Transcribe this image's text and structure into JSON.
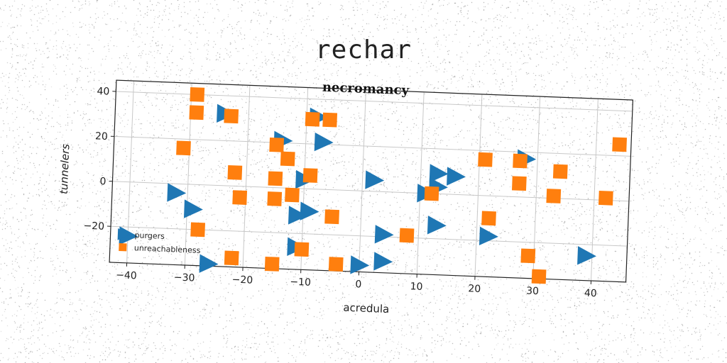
{
  "page_title": "rechar",
  "chart_data": {
    "type": "scatter",
    "title": "necromancy",
    "xlabel": "acredula",
    "ylabel": "tunnelers",
    "xlim": [
      -43,
      46
    ],
    "ylim": [
      -36,
      45
    ],
    "xticks": [
      -40,
      -30,
      -20,
      -10,
      0,
      10,
      20,
      30,
      40
    ],
    "yticks": [
      -20,
      0,
      20,
      40
    ],
    "grid": true,
    "legend_position": "lower-left",
    "series": [
      {
        "name": "purgers",
        "marker": "triangle-right",
        "color": "#1f77b4",
        "points": [
          [
            -24,
            32
          ],
          [
            -8,
            32
          ],
          [
            -14,
            21
          ],
          [
            -7,
            21
          ],
          [
            -32,
            -4
          ],
          [
            -29,
            -11
          ],
          [
            -10,
            4
          ],
          [
            -9,
            -10
          ],
          [
            -11,
            -12
          ],
          [
            -11,
            -26
          ],
          [
            2,
            5
          ],
          [
            4,
            -19
          ],
          [
            11,
            0
          ],
          [
            13,
            9
          ],
          [
            16,
            8
          ],
          [
            13,
            3
          ],
          [
            13,
            -14
          ],
          [
            22,
            -18
          ],
          [
            28,
            17
          ],
          [
            39,
            -25
          ],
          [
            -26,
            -35
          ],
          [
            0,
            -33
          ],
          [
            4,
            -31
          ],
          [
            -40,
            -24
          ]
        ]
      },
      {
        "name": "unreachableness",
        "marker": "square",
        "color": "#ff7f0e",
        "points": [
          [
            -29,
            40
          ],
          [
            -29,
            32
          ],
          [
            -23,
            31
          ],
          [
            -9,
            31
          ],
          [
            -6,
            31
          ],
          [
            -15,
            19
          ],
          [
            -13,
            13
          ],
          [
            -31,
            16
          ],
          [
            -22,
            6
          ],
          [
            -9,
            6
          ],
          [
            -15,
            4
          ],
          [
            -15,
            -5
          ],
          [
            -12,
            -3
          ],
          [
            -21,
            -5
          ],
          [
            -5,
            -12
          ],
          [
            -28,
            -20
          ],
          [
            -22,
            -32
          ],
          [
            -15,
            -34
          ],
          [
            -10,
            -27
          ],
          [
            -4,
            -33
          ],
          [
            8,
            -19
          ],
          [
            12,
            0
          ],
          [
            22,
            -10
          ],
          [
            21,
            16
          ],
          [
            27,
            16
          ],
          [
            27,
            6
          ],
          [
            34,
            12
          ],
          [
            33,
            1
          ],
          [
            42,
            1
          ],
          [
            44,
            25
          ],
          [
            29,
            -26
          ],
          [
            31,
            -35
          ]
        ]
      }
    ]
  }
}
